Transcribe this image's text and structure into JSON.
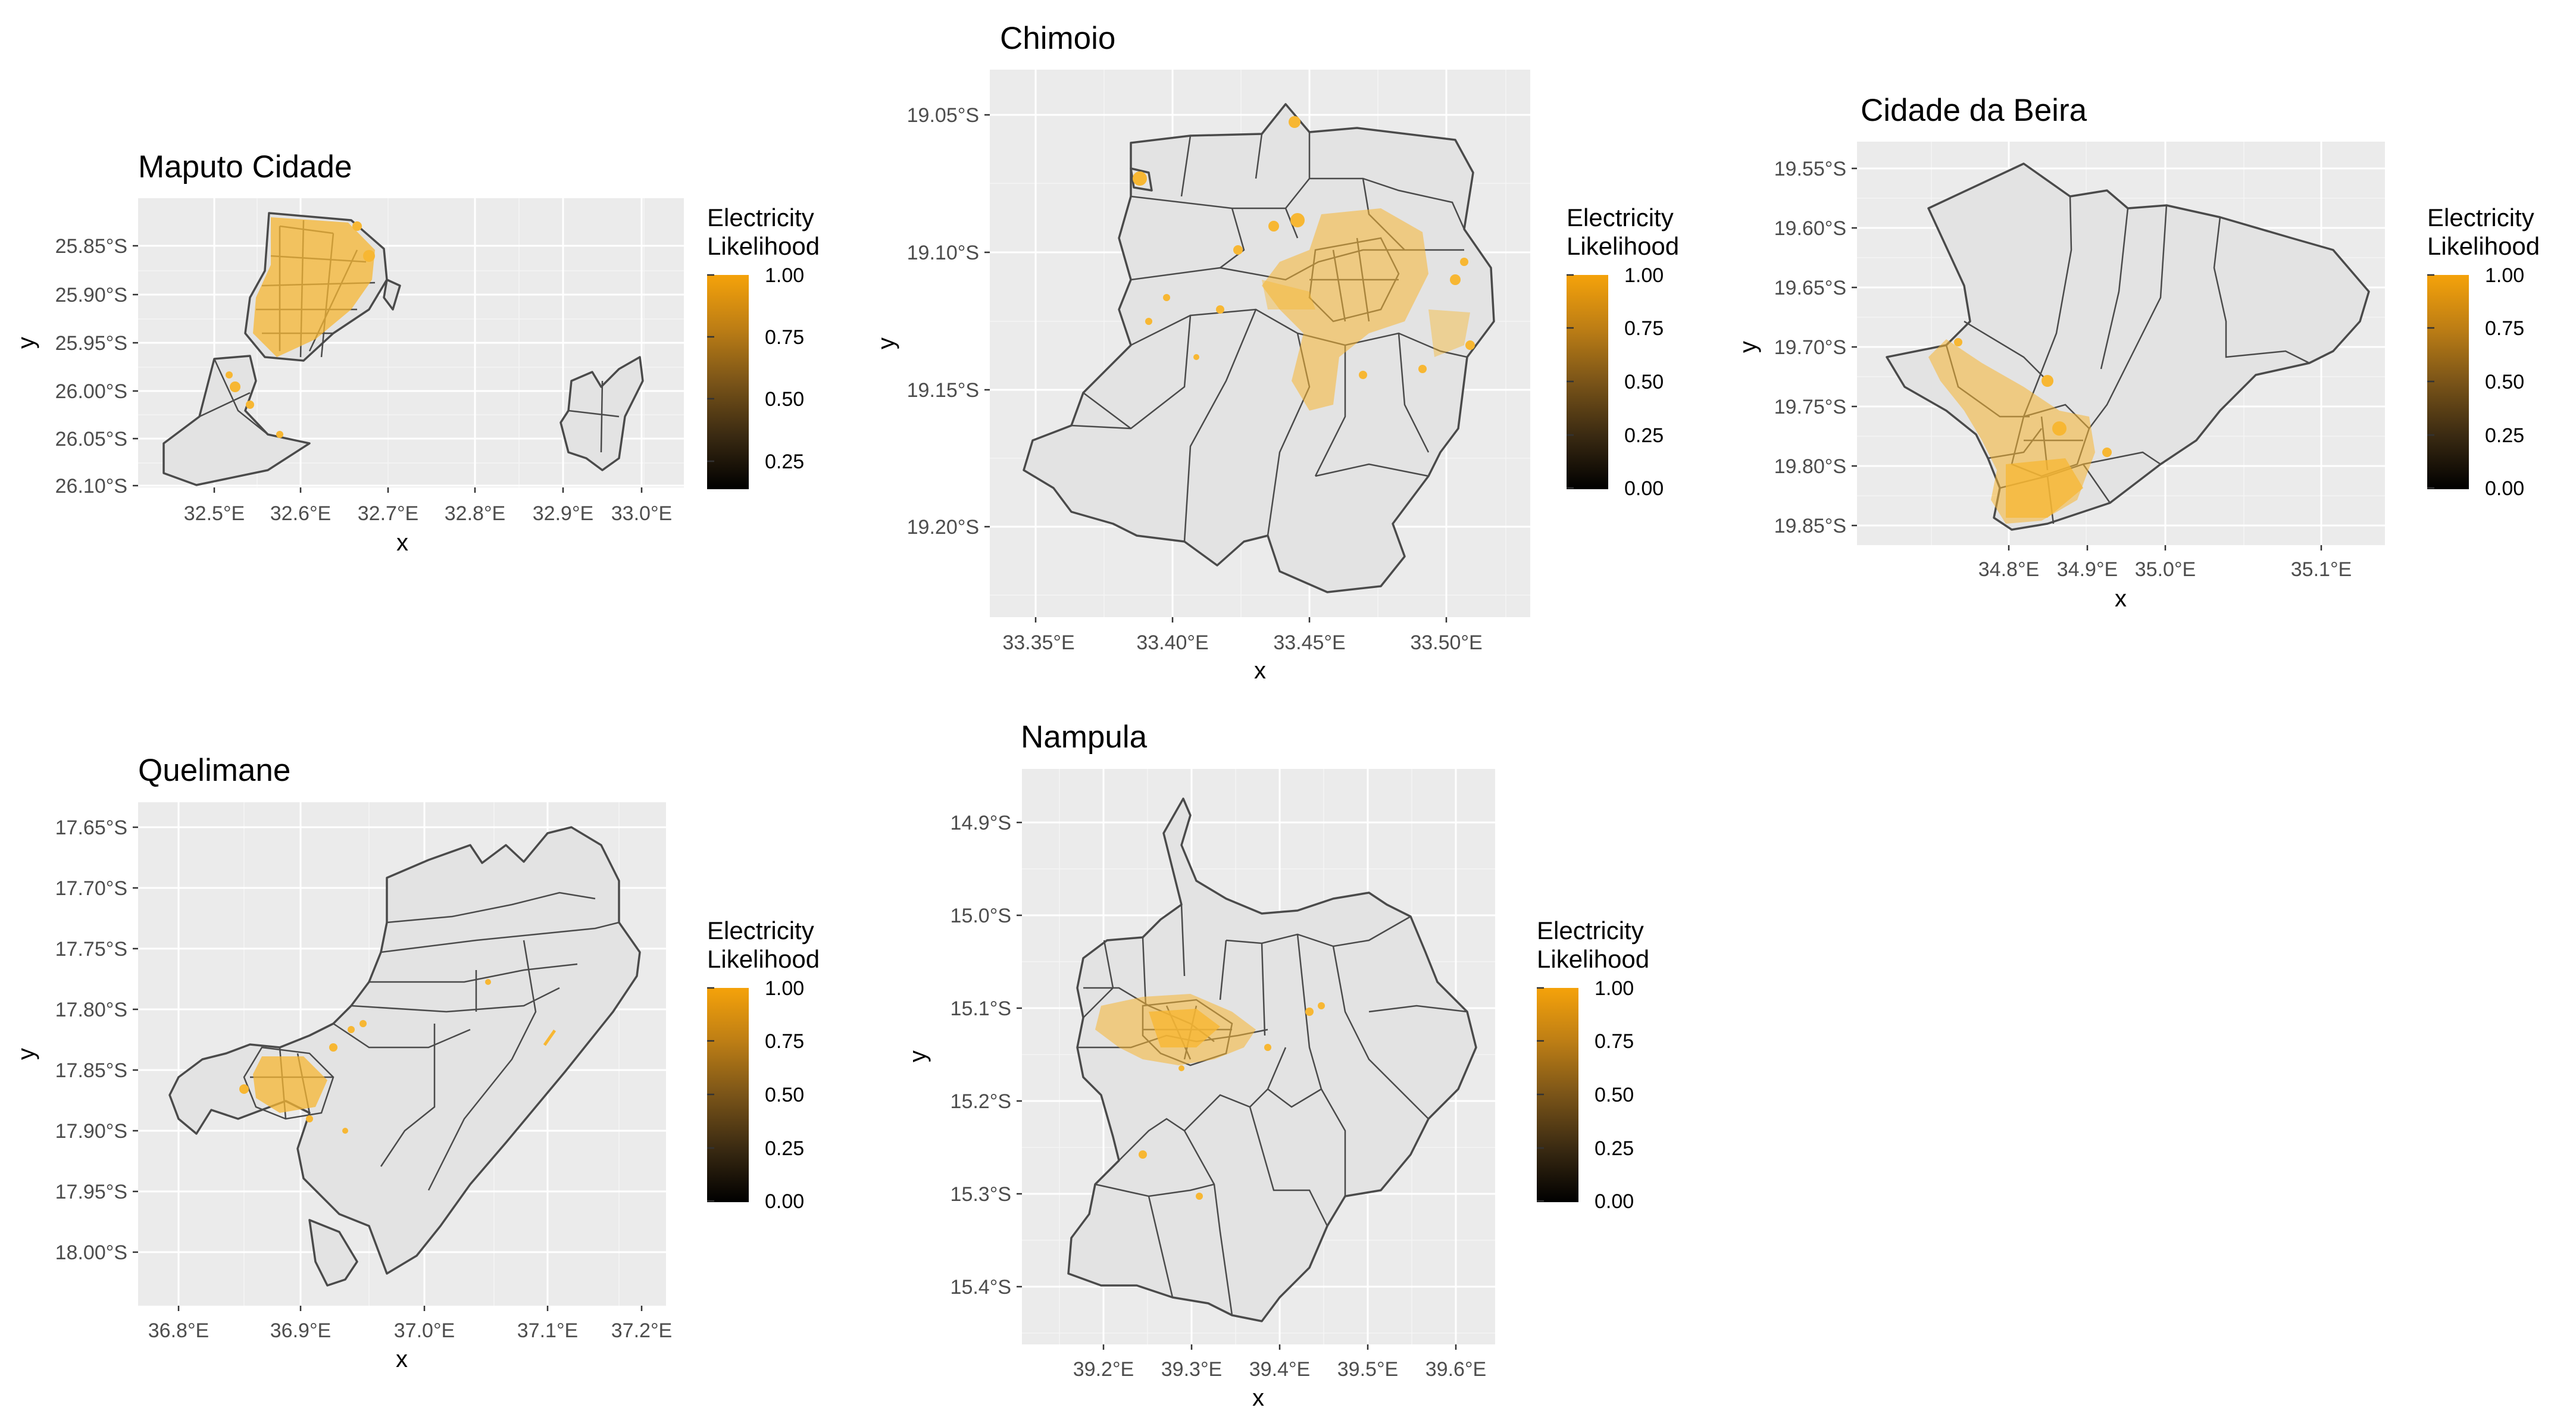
{
  "legend": {
    "title_line1": "Electricity",
    "title_line2": " Likelihood",
    "colors": [
      "#000000",
      "#f5a20a"
    ]
  },
  "panels": [
    {
      "id": "maputo",
      "title": "Maputo Cidade",
      "xlabel": "x",
      "ylabel": "y",
      "x_ticks": [
        "32.5°E",
        "32.6°E",
        "32.7°E",
        "32.8°E",
        "32.9°E",
        "33.0°E"
      ],
      "y_ticks": [
        "25.85°S",
        "25.90°S",
        "25.95°S",
        "26.00°S",
        "26.05°S",
        "26.10°S"
      ],
      "legend_labels": [
        "1.00",
        "0.75",
        "0.50",
        "0.25"
      ]
    },
    {
      "id": "chimoio",
      "title": "Chimoio",
      "xlabel": "x",
      "ylabel": "y",
      "x_ticks": [
        "33.35°E",
        "33.40°E",
        "33.45°E",
        "33.50°E"
      ],
      "y_ticks": [
        "19.05°S",
        "19.10°S",
        "19.15°S",
        "19.20°S"
      ],
      "legend_labels": [
        "1.00",
        "0.75",
        "0.50",
        "0.25",
        "0.00"
      ]
    },
    {
      "id": "beira",
      "title": "Cidade da Beira",
      "xlabel": "x",
      "ylabel": "y",
      "x_ticks": [
        "34.8°E",
        "34.9°E",
        "35.0°E",
        "35.1°E"
      ],
      "y_ticks": [
        "19.55°S",
        "19.60°S",
        "19.65°S",
        "19.70°S",
        "19.75°S",
        "19.80°S",
        "19.85°S"
      ],
      "legend_labels": [
        "1.00",
        "0.75",
        "0.50",
        "0.25",
        "0.00"
      ]
    },
    {
      "id": "quelimane",
      "title": "Quelimane",
      "xlabel": "x",
      "ylabel": "y",
      "x_ticks": [
        "36.8°E",
        "36.9°E",
        "37.0°E",
        "37.1°E",
        "37.2°E"
      ],
      "y_ticks": [
        "17.65°S",
        "17.70°S",
        "17.75°S",
        "17.80°S",
        "17.85°S",
        "17.90°S",
        "17.95°S",
        "18.00°S"
      ],
      "legend_labels": [
        "1.00",
        "0.75",
        "0.50",
        "0.25",
        "0.00"
      ]
    },
    {
      "id": "nampula",
      "title": "Nampula",
      "xlabel": "x",
      "ylabel": "y",
      "x_ticks": [
        "39.2°E",
        "39.3°E",
        "39.4°E",
        "39.5°E",
        "39.6°E"
      ],
      "y_ticks": [
        "14.9°S",
        "15.0°S",
        "15.1°S",
        "15.2°S",
        "15.3°S",
        "15.4°S"
      ],
      "legend_labels": [
        "1.00",
        "0.75",
        "0.50",
        "0.25",
        "0.00"
      ]
    }
  ]
}
